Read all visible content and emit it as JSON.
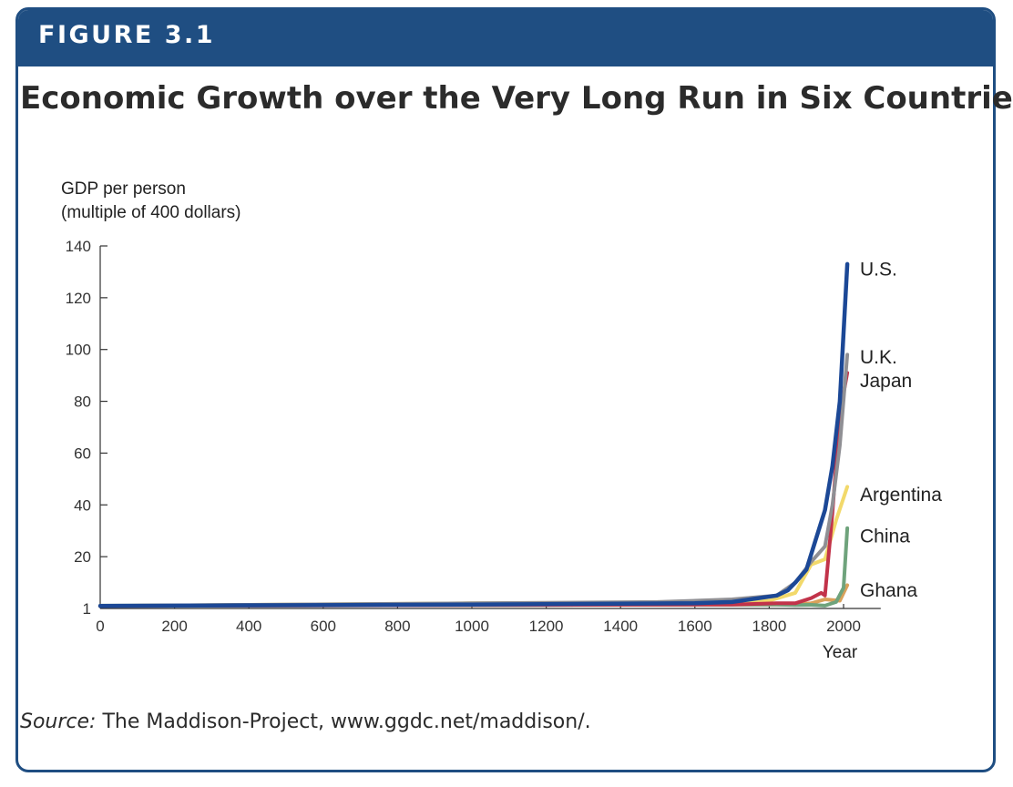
{
  "header": {
    "label": "FIGURE 3.1"
  },
  "title": "Economic Growth over the Very Long Run in Six Countries",
  "source": {
    "prefix": "Source:",
    "text": " The Maddison-Project, www.ggdc.net/maddison/."
  },
  "chart_data": {
    "type": "line",
    "title": "Economic Growth over the Very Long Run in Six Countries",
    "ylabel_line1": "GDP per person",
    "ylabel_line2": "(multiple of 400 dollars)",
    "xlabel": "Year",
    "xlim": [
      0,
      2100
    ],
    "ylim": [
      0,
      140
    ],
    "x_ticks": [
      0,
      200,
      400,
      600,
      800,
      1000,
      1200,
      1400,
      1600,
      1800,
      2000
    ],
    "y_ticks": [
      1,
      20,
      40,
      60,
      80,
      100,
      120,
      140
    ],
    "series": [
      {
        "name": "Ghana",
        "color": "#d9a15a",
        "points": [
          [
            0,
            1
          ],
          [
            1850,
            1.5
          ],
          [
            1913,
            2
          ],
          [
            1950,
            3.5
          ],
          [
            1990,
            3
          ],
          [
            2010,
            9
          ]
        ]
      },
      {
        "name": "China",
        "color": "#6fa37c",
        "points": [
          [
            0,
            1.1
          ],
          [
            1700,
            1.5
          ],
          [
            1820,
            1.5
          ],
          [
            1870,
            1.3
          ],
          [
            1913,
            1.4
          ],
          [
            1950,
            1.1
          ],
          [
            1980,
            2.5
          ],
          [
            2000,
            8
          ],
          [
            2010,
            31
          ]
        ]
      },
      {
        "name": "Argentina",
        "color": "#f2d96b",
        "points": [
          [
            0,
            1
          ],
          [
            1000,
            2
          ],
          [
            1600,
            2
          ],
          [
            1800,
            3
          ],
          [
            1870,
            6
          ],
          [
            1913,
            17
          ],
          [
            1950,
            19
          ],
          [
            1980,
            34
          ],
          [
            2010,
            47
          ]
        ]
      },
      {
        "name": "Japan",
        "color": "#c2334a",
        "points": [
          [
            0,
            1
          ],
          [
            1600,
            1.5
          ],
          [
            1700,
            1.5
          ],
          [
            1820,
            2
          ],
          [
            1870,
            2
          ],
          [
            1913,
            4
          ],
          [
            1940,
            6
          ],
          [
            1950,
            5
          ],
          [
            1970,
            37
          ],
          [
            1990,
            75
          ],
          [
            2010,
            91
          ]
        ]
      },
      {
        "name": "U.K.",
        "color": "#8f8f94",
        "points": [
          [
            0,
            1
          ],
          [
            1000,
            2
          ],
          [
            1500,
            2.5
          ],
          [
            1700,
            3.5
          ],
          [
            1820,
            5
          ],
          [
            1870,
            10
          ],
          [
            1913,
            18
          ],
          [
            1950,
            24
          ],
          [
            1970,
            40
          ],
          [
            1990,
            63
          ],
          [
            2010,
            98
          ]
        ]
      },
      {
        "name": "U.S.",
        "color": "#1c4896",
        "points": [
          [
            0,
            1
          ],
          [
            1000,
            1.5
          ],
          [
            1600,
            2
          ],
          [
            1700,
            2.5
          ],
          [
            1820,
            5
          ],
          [
            1850,
            7
          ],
          [
            1870,
            10
          ],
          [
            1900,
            15
          ],
          [
            1913,
            21
          ],
          [
            1950,
            38
          ],
          [
            1970,
            55
          ],
          [
            1990,
            80
          ],
          [
            2010,
            133
          ]
        ]
      }
    ],
    "labels": {
      "U.S.": {
        "text": "U.S.",
        "y": 131
      },
      "U.K.": {
        "text": "U.K.",
        "y": 97
      },
      "Japan": {
        "text": "Japan",
        "y": 88
      },
      "Argentina": {
        "text": "Argentina",
        "y": 44
      },
      "China": {
        "text": "China",
        "y": 28
      },
      "Ghana": {
        "text": "Ghana",
        "y": 7
      }
    }
  }
}
